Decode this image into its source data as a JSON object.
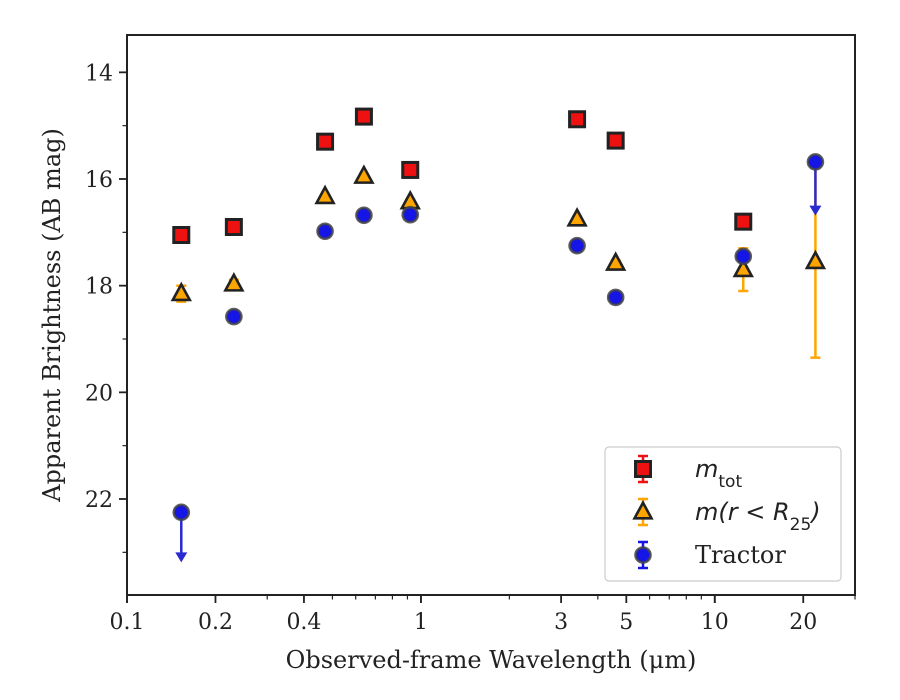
{
  "chart_data": {
    "type": "scatter",
    "xlabel": "Observed-frame Wavelength (μm)",
    "ylabel": "Apparent Brightness (AB mag)",
    "x_scale": "log",
    "xlim": [
      0.1,
      30
    ],
    "ylim": [
      23.8,
      13.3
    ],
    "y_inverted": true,
    "grid": false,
    "legend_position": "lower-right",
    "x_ticks": [
      {
        "value": 0.1,
        "label": "0.1"
      },
      {
        "value": 0.2,
        "label": "0.2"
      },
      {
        "value": 0.4,
        "label": "0.4"
      },
      {
        "value": 1,
        "label": "1"
      },
      {
        "value": 3,
        "label": "3"
      },
      {
        "value": 5,
        "label": "5"
      },
      {
        "value": 10,
        "label": "10"
      },
      {
        "value": 20,
        "label": "20"
      }
    ],
    "y_ticks": [
      14,
      16,
      18,
      20,
      22
    ],
    "series": [
      {
        "name": "m_tot",
        "legend_label": {
          "main": "m",
          "sub": "tot"
        },
        "marker": "square",
        "color": "#ee1111",
        "edge_color": "#222222",
        "points": [
          {
            "x": 0.153,
            "y": 17.05,
            "err": 0.08
          },
          {
            "x": 0.231,
            "y": 16.9,
            "err": 0.05
          },
          {
            "x": 0.472,
            "y": 15.3,
            "err": 0.03
          },
          {
            "x": 0.64,
            "y": 14.83,
            "err": 0.03
          },
          {
            "x": 0.92,
            "y": 15.83,
            "err": 0.03
          },
          {
            "x": 3.4,
            "y": 14.88,
            "err": 0.03
          },
          {
            "x": 4.6,
            "y": 15.28,
            "err": 0.03
          },
          {
            "x": 12.5,
            "y": 16.8,
            "err": 0.05
          }
        ]
      },
      {
        "name": "m(r < R25)",
        "legend_label": {
          "main": "m(r < R",
          "sub": "25",
          "tail": ")"
        },
        "marker": "triangle",
        "color": "#ffa500",
        "edge_color": "#222222",
        "points": [
          {
            "x": 0.153,
            "y": 18.15,
            "err": 0.15
          },
          {
            "x": 0.231,
            "y": 17.97,
            "err": 0.08
          },
          {
            "x": 0.472,
            "y": 16.33,
            "err": 0.04
          },
          {
            "x": 0.64,
            "y": 15.95,
            "err": 0.04
          },
          {
            "x": 0.92,
            "y": 16.43,
            "err": 0.04
          },
          {
            "x": 3.4,
            "y": 16.75,
            "err": 0.04
          },
          {
            "x": 4.6,
            "y": 17.58,
            "err": 0.05
          },
          {
            "x": 12.5,
            "y": 17.7,
            "err": 0.4
          },
          {
            "x": 22.0,
            "y": 17.55,
            "err": 1.8
          }
        ]
      },
      {
        "name": "Tractor",
        "legend_label": {
          "main": "Tractor"
        },
        "marker": "circle",
        "color": "#1515e6",
        "edge_color": "#444444",
        "upper_limit_color": "#2a2ad0",
        "points": [
          {
            "x": 0.153,
            "y": 22.25,
            "err": 0.05,
            "upper_limit": true,
            "arrow_to": 23.15
          },
          {
            "x": 0.231,
            "y": 18.58,
            "err": 0.08
          },
          {
            "x": 0.472,
            "y": 16.98,
            "err": 0.04
          },
          {
            "x": 0.64,
            "y": 16.68,
            "err": 0.04
          },
          {
            "x": 0.92,
            "y": 16.67,
            "err": 0.04
          },
          {
            "x": 3.4,
            "y": 17.25,
            "err": 0.04
          },
          {
            "x": 4.6,
            "y": 18.22,
            "err": 0.05
          },
          {
            "x": 12.5,
            "y": 17.45,
            "err": 0.08
          },
          {
            "x": 22.0,
            "y": 15.68,
            "err": 0.05,
            "upper_limit": true,
            "arrow_to": 16.65
          }
        ]
      }
    ]
  }
}
